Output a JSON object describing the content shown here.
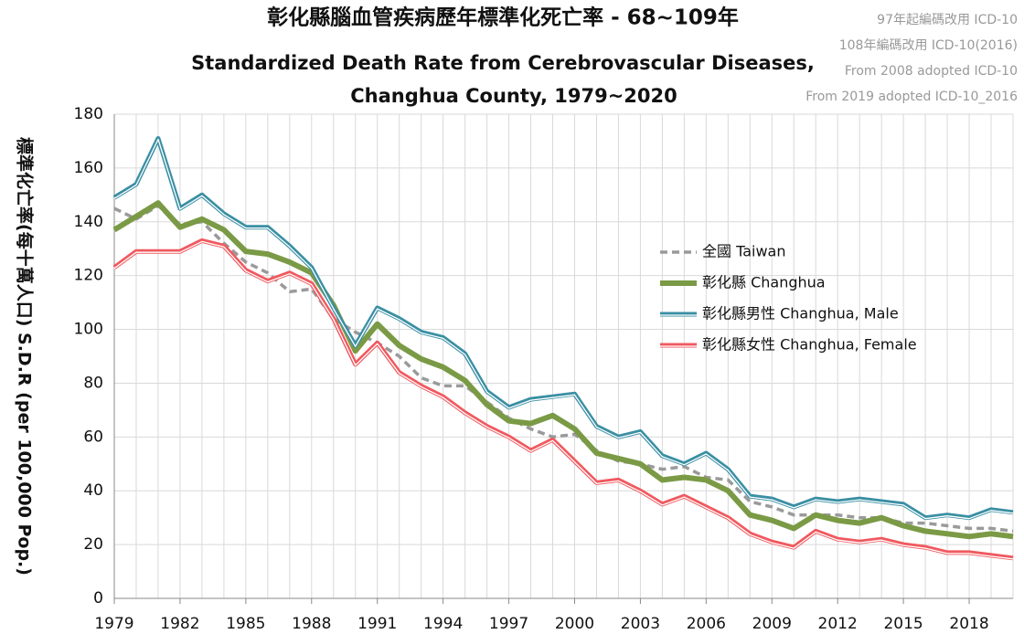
{
  "chart_data": {
    "type": "line",
    "title": "彰化縣腦血管疾病歷年標準化死亡率 - 68~109年",
    "subtitle": [
      "Standardized Death Rate from Cerebrovascular Diseases,",
      "Changhua County, 1979~2020"
    ],
    "notes": [
      "97年起編碼改用 ICD-10",
      "108年編碼改用 ICD-10(2016)",
      "From 2008 adopted ICD-10",
      "From 2019 adopted ICD-10_2016"
    ],
    "y_label": "標準化亡率(每十萬人口) S.D.R (per 100,000 Pop.)",
    "x": [
      1979,
      1980,
      1981,
      1982,
      1983,
      1984,
      1985,
      1986,
      1987,
      1988,
      1989,
      1990,
      1991,
      1992,
      1993,
      1994,
      1995,
      1996,
      1997,
      1998,
      1999,
      2000,
      2001,
      2002,
      2003,
      2004,
      2005,
      2006,
      2007,
      2008,
      2009,
      2010,
      2011,
      2012,
      2013,
      2014,
      2015,
      2016,
      2017,
      2018,
      2019,
      2020
    ],
    "xlim": [
      1979,
      2020
    ],
    "xticks": [
      1979,
      1982,
      1985,
      1988,
      1991,
      1994,
      1997,
      2000,
      2003,
      2006,
      2009,
      2012,
      2015,
      2018
    ],
    "ylim": [
      0,
      180
    ],
    "yticks": [
      0,
      20,
      40,
      60,
      80,
      100,
      120,
      140,
      160,
      180
    ],
    "grid": true,
    "series": [
      {
        "name": "全國 Taiwan",
        "color": "#9a9a9a",
        "dashed": true,
        "values": [
          145,
          141,
          146,
          139,
          140,
          132,
          125,
          121,
          114,
          115,
          104,
          99,
          95,
          90,
          82,
          79,
          79,
          73,
          67,
          63,
          60,
          61,
          55,
          51,
          50,
          48,
          49,
          45,
          44,
          36,
          34,
          31,
          31,
          31,
          30,
          30,
          28,
          28,
          27,
          26,
          26,
          25
        ]
      },
      {
        "name": "彰化縣 Changhua",
        "color": "#7a9a45",
        "values": [
          137,
          142,
          147,
          138,
          141,
          137,
          129,
          128,
          125,
          121,
          109,
          92,
          102,
          94,
          89,
          86,
          81,
          72,
          66,
          65,
          68,
          63,
          54,
          52,
          50,
          44,
          45,
          44,
          40,
          31,
          29,
          26,
          31,
          29,
          28,
          30,
          27,
          25,
          24,
          23,
          24,
          23
        ]
      },
      {
        "name": "彰化縣男性 Changhua, Male",
        "color": "#3a8fa3",
        "outline": true,
        "values": [
          149,
          154,
          171,
          145,
          150,
          143,
          138,
          138,
          131,
          123,
          108,
          94,
          108,
          104,
          99,
          97,
          91,
          77,
          71,
          74,
          75,
          76,
          64,
          60,
          62,
          53,
          50,
          54,
          48,
          38,
          37,
          34,
          37,
          36,
          37,
          36,
          35,
          30,
          31,
          30,
          33,
          32
        ]
      },
      {
        "name": "彰化縣女性 Changhua, Female",
        "color": "#f0595f",
        "outline": true,
        "values": [
          123,
          129,
          129,
          129,
          133,
          131,
          122,
          118,
          121,
          117,
          104,
          87,
          95,
          84,
          79,
          75,
          69,
          64,
          60,
          55,
          59,
          51,
          43,
          44,
          40,
          35,
          38,
          34,
          30,
          24,
          21,
          19,
          25,
          22,
          21,
          22,
          20,
          19,
          17,
          17,
          16,
          15
        ]
      }
    ]
  }
}
